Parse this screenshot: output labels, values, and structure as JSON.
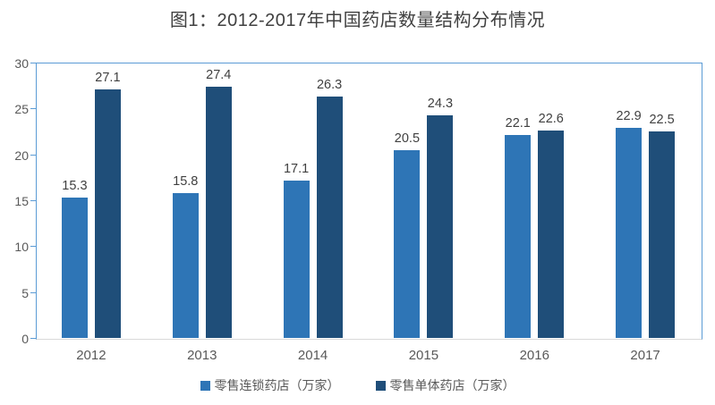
{
  "chart_data": {
    "type": "bar",
    "title": "图1：2012-2017年中国药店数量结构分布情况",
    "categories": [
      "2012",
      "2013",
      "2014",
      "2015",
      "2016",
      "2017"
    ],
    "series": [
      {
        "name": "零售连锁药店（万家）",
        "color": "#2E75B6",
        "values": [
          15.3,
          15.8,
          17.1,
          20.5,
          22.1,
          22.9
        ]
      },
      {
        "name": "零售单体药店（万家）",
        "color": "#1F4E79",
        "values": [
          27.1,
          27.4,
          26.3,
          24.3,
          22.6,
          22.5
        ]
      }
    ],
    "value_labels": [
      "15.3",
      "15.8",
      "17.1",
      "20.5",
      "22.1",
      "22.9",
      "27.1",
      "27.4",
      "26.3",
      "24.3",
      "22.6",
      "22.5"
    ],
    "xlabel": "",
    "ylabel": "",
    "ylim": [
      0,
      30
    ],
    "yticks": [
      0,
      5,
      10,
      15,
      20,
      25,
      30
    ],
    "grid": false,
    "legend_position": "bottom",
    "colors": {
      "plot_border": "#5B9BD5",
      "baseline": "#D9D9D9",
      "tick": "#5B9BD5",
      "axis_label": "#595959",
      "value_label": "#404040",
      "title": "#404040",
      "background": "#ffffff"
    }
  }
}
